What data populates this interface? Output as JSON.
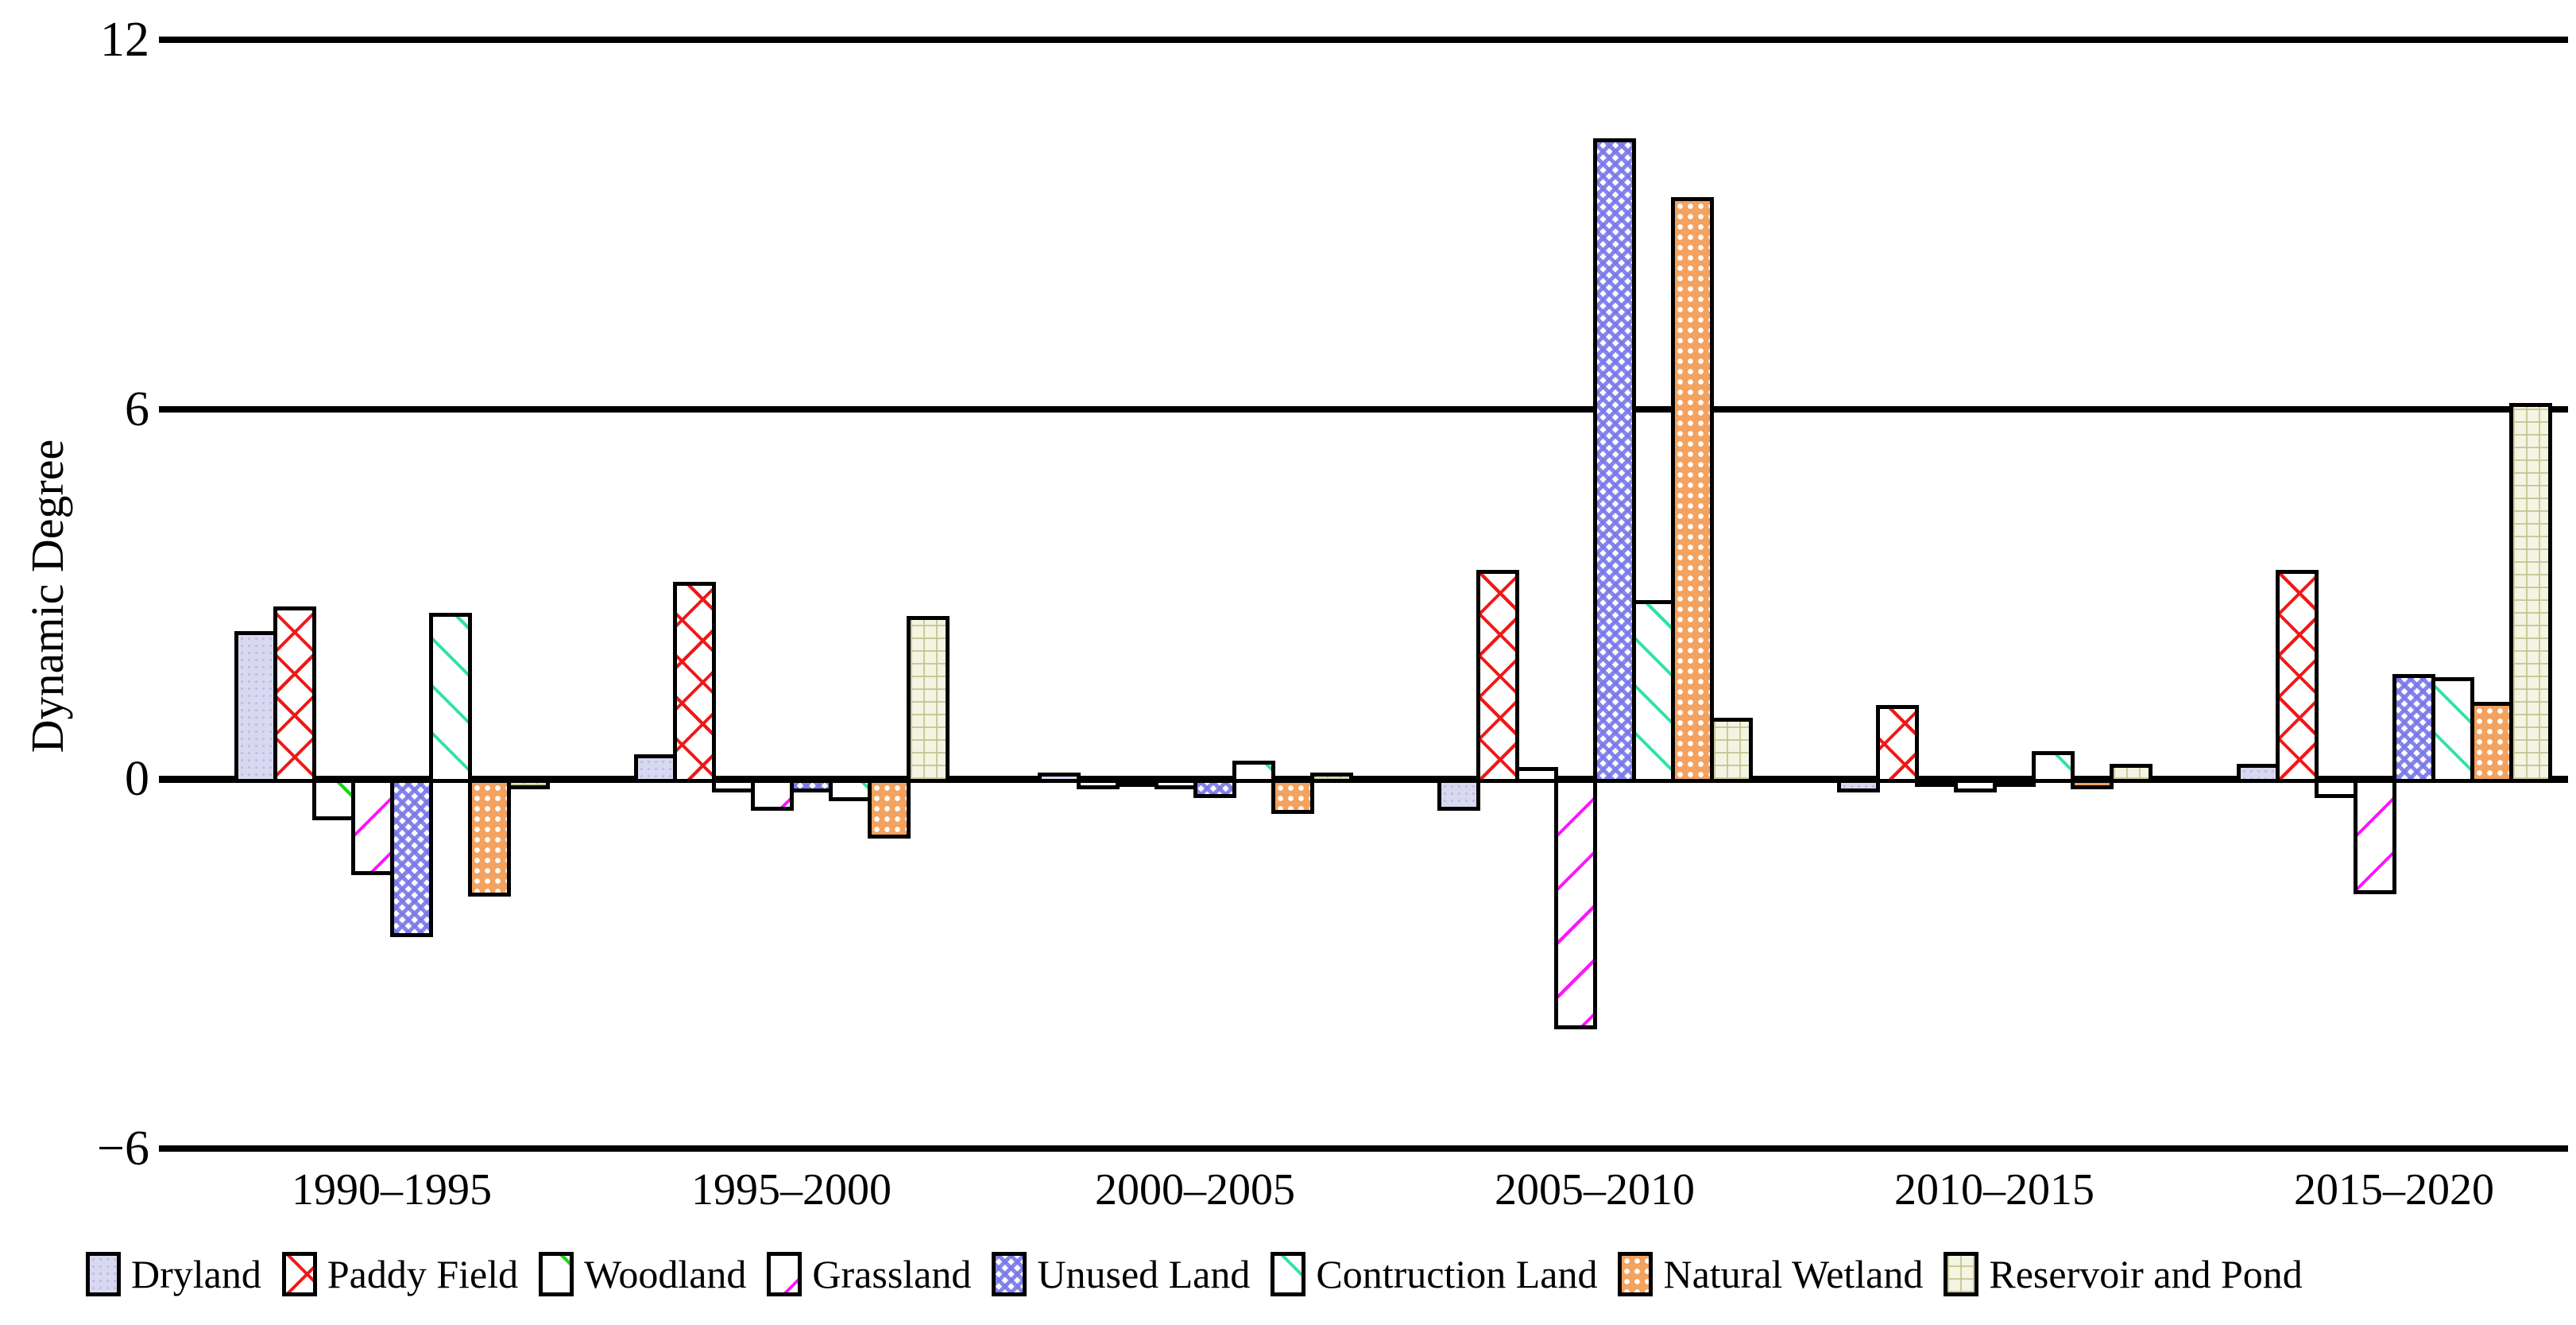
{
  "chart_data": {
    "type": "bar",
    "title": "",
    "ylabel": "Dynamic Degree",
    "xlabel": "",
    "ylim": [
      -6,
      12
    ],
    "grid": "horizontal-major",
    "legend_position": "bottom",
    "yticks": [
      {
        "label": "12",
        "value": 12
      },
      {
        "label": "6",
        "value": 6
      },
      {
        "label": "0",
        "value": 0
      },
      {
        "label": "−6",
        "value": -6
      }
    ],
    "categories": [
      "1990–1995",
      "1995–2000",
      "2000–2005",
      "2005–2010",
      "2010–2015",
      "2015–2020"
    ],
    "series": [
      {
        "name": "Dryland",
        "pattern": "dryland",
        "color": "#d8d8f0",
        "values": [
          2.4,
          0.4,
          0.1,
          -0.45,
          -0.15,
          0.25
        ]
      },
      {
        "name": "Paddy Field",
        "pattern": "paddy",
        "color": "#f01818",
        "values": [
          2.8,
          3.2,
          -0.1,
          3.4,
          1.2,
          3.4
        ]
      },
      {
        "name": "Woodland",
        "pattern": "woodland",
        "color": "#1ad51a",
        "values": [
          -0.6,
          -0.15,
          -0.05,
          0.2,
          -0.05,
          -0.25
        ]
      },
      {
        "name": "Grassland",
        "pattern": "grassland",
        "color": "#ff14ff",
        "values": [
          -1.5,
          -0.45,
          -0.1,
          -4.0,
          -0.15,
          -1.8
        ]
      },
      {
        "name": "Unused Land",
        "pattern": "unused",
        "color": "#7878e8",
        "values": [
          -2.5,
          -0.15,
          -0.25,
          10.4,
          -0.05,
          1.7
        ]
      },
      {
        "name": "Contruction Land",
        "pattern": "construction",
        "color": "#31e2a4",
        "values": [
          2.7,
          -0.3,
          0.3,
          2.9,
          0.45,
          1.65
        ]
      },
      {
        "name": "Natural Wetland",
        "pattern": "wetland",
        "color": "#f3a25f",
        "values": [
          -1.85,
          -0.9,
          -0.5,
          9.45,
          -0.1,
          1.25
        ]
      },
      {
        "name": "Reservoir and Pond",
        "pattern": "reservoir",
        "color": "#f4f4e3",
        "values": [
          -0.1,
          2.65,
          0.1,
          1.0,
          0.25,
          6.1
        ]
      }
    ]
  }
}
